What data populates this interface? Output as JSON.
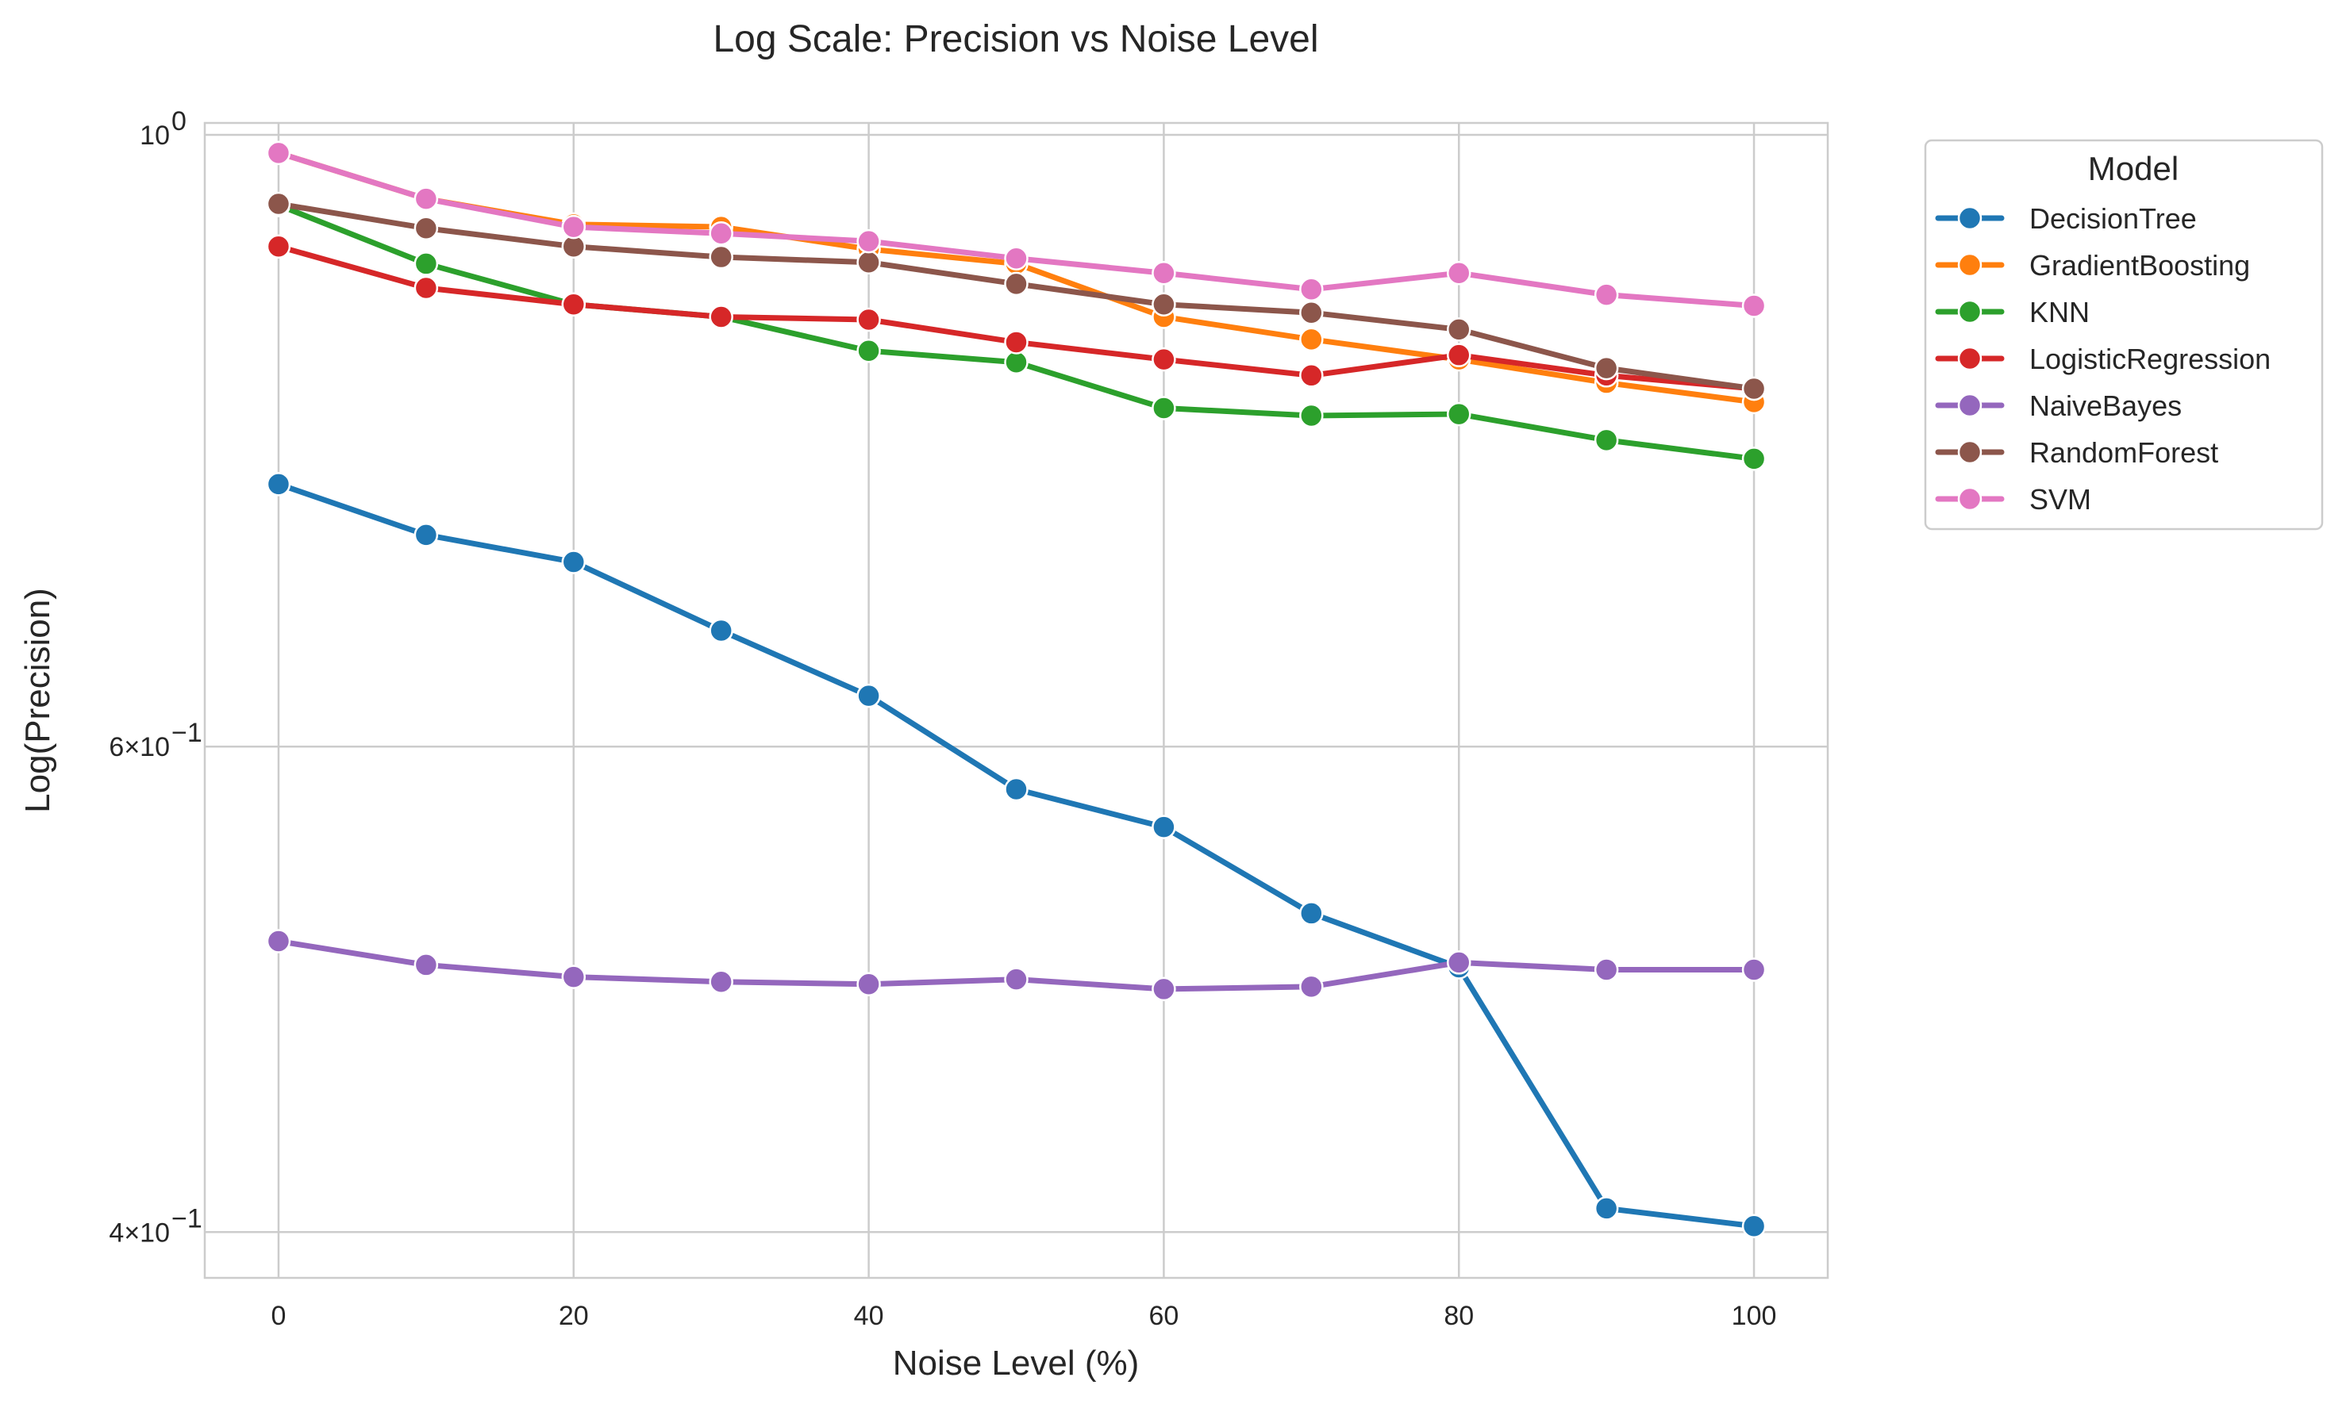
{
  "chart_data": {
    "type": "line",
    "title": "Log Scale: Precision vs Noise Level",
    "xlabel": "Noise Level (%)",
    "ylabel": "Log(Precision)",
    "x": [
      0,
      10,
      20,
      30,
      40,
      50,
      60,
      70,
      80,
      90,
      100
    ],
    "xlim": [
      -5,
      105
    ],
    "ylim": [
      0.385,
      1.01
    ],
    "y_scale": "log",
    "x_ticks": [
      0,
      20,
      40,
      60,
      80,
      100
    ],
    "x_tick_labels": [
      "0",
      "20",
      "40",
      "60",
      "80",
      "100"
    ],
    "y_ticks": [
      {
        "value": 1.0,
        "mantissa": "10",
        "exponent": "0"
      },
      {
        "value": 0.6,
        "mantissa": "6×10",
        "exponent": "−1"
      },
      {
        "value": 0.4,
        "mantissa": "4×10",
        "exponent": "−1"
      }
    ],
    "grid": true,
    "legend_title": "Model",
    "legend_position": "outside-right",
    "series": [
      {
        "name": "DecisionTree",
        "color": "#1f77b4",
        "values": [
          0.747,
          0.716,
          0.7,
          0.661,
          0.626,
          0.579,
          0.561,
          0.522,
          0.499,
          0.408,
          0.402
        ]
      },
      {
        "name": "GradientBoosting",
        "color": "#ff7f0e",
        "values": [
          0.985,
          0.948,
          0.928,
          0.926,
          0.909,
          0.898,
          0.859,
          0.843,
          0.829,
          0.813,
          0.8
        ]
      },
      {
        "name": "KNN",
        "color": "#2ca02c",
        "values": [
          0.943,
          0.898,
          0.868,
          0.859,
          0.835,
          0.827,
          0.796,
          0.791,
          0.792,
          0.775,
          0.763
        ]
      },
      {
        "name": "LogisticRegression",
        "color": "#d62728",
        "values": [
          0.911,
          0.88,
          0.868,
          0.859,
          0.857,
          0.841,
          0.829,
          0.818,
          0.832,
          0.818,
          0.809
        ]
      },
      {
        "name": "NaiveBayes",
        "color": "#9467bd",
        "values": [
          0.51,
          0.5,
          0.495,
          0.493,
          0.492,
          0.494,
          0.49,
          0.491,
          0.501,
          0.498,
          0.498
        ]
      },
      {
        "name": "RandomForest",
        "color": "#8c564b",
        "values": [
          0.944,
          0.925,
          0.911,
          0.903,
          0.899,
          0.883,
          0.868,
          0.862,
          0.85,
          0.823,
          0.809
        ]
      },
      {
        "name": "SVM",
        "color": "#e377c2",
        "values": [
          0.985,
          0.948,
          0.926,
          0.921,
          0.915,
          0.902,
          0.891,
          0.879,
          0.891,
          0.875,
          0.867
        ]
      }
    ]
  }
}
